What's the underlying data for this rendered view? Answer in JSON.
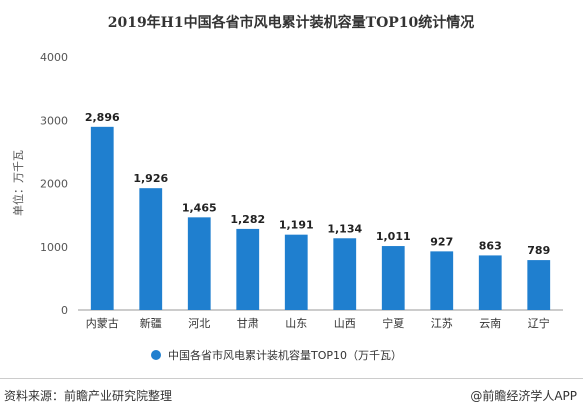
{
  "chart_data": {
    "type": "bar",
    "title": "2019年H1中国各省市风电累计装机容量TOP10统计情况",
    "ylabel": "单位：万千瓦",
    "xlabel": "",
    "ylim": [
      0,
      4000
    ],
    "yticks": [
      0,
      1000,
      2000,
      3000,
      4000
    ],
    "categories": [
      "内蒙古",
      "新疆",
      "河北",
      "甘肃",
      "山东",
      "山西",
      "宁夏",
      "江苏",
      "云南",
      "辽宁"
    ],
    "values": [
      2896,
      1926,
      1465,
      1282,
      1191,
      1134,
      1011,
      927,
      863,
      789
    ],
    "value_labels": [
      "2,896",
      "1,926",
      "1,465",
      "1,282",
      "1,191",
      "1,134",
      "1,011",
      "927",
      "863",
      "789"
    ],
    "series_name": "中国各省市风电累计装机容量TOP10（万千瓦）",
    "legend_position": "bottom",
    "bar_color": "#1f7fcf",
    "grid": false
  },
  "footer": {
    "source": "资料来源：前瞻产业研究院整理",
    "brand": "@前瞻经济学人APP"
  }
}
